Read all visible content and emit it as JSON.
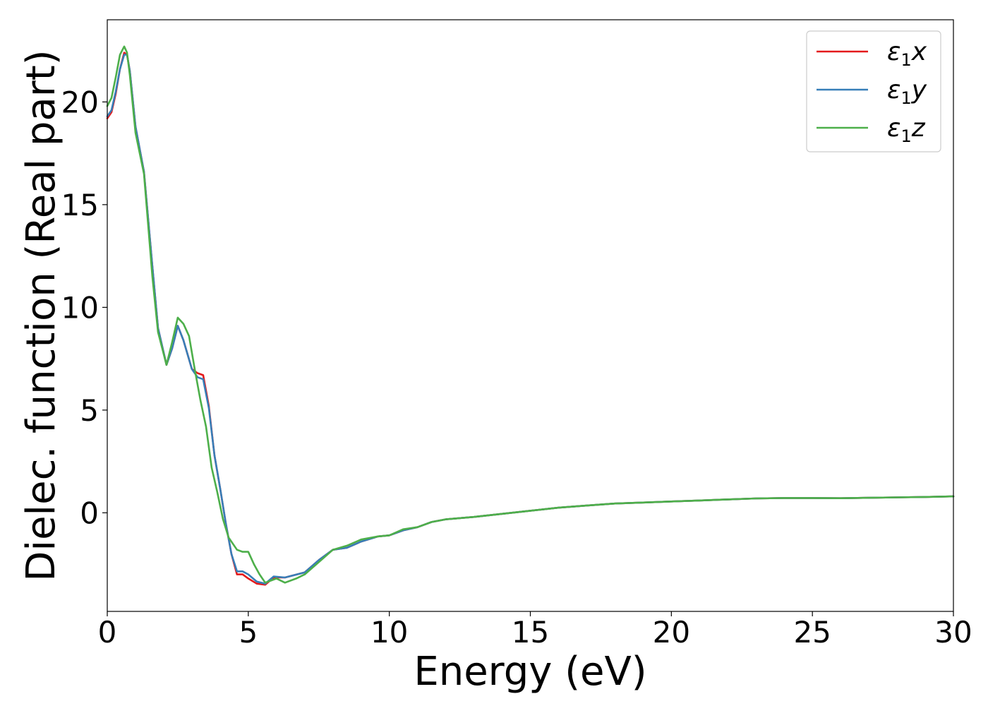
{
  "chart_data": {
    "type": "line",
    "xlabel": "Energy (eV)",
    "ylabel": "Dielec. function (Real part)",
    "xlim": [
      0,
      30
    ],
    "ylim": [
      -4.8,
      24
    ],
    "xticks": [
      0,
      5,
      10,
      15,
      20,
      25,
      30
    ],
    "yticks": [
      0,
      5,
      10,
      15,
      20
    ],
    "grid": false,
    "legend_position": "top-right",
    "series": [
      {
        "name": "ε₁x",
        "legend": {
          "base": "ε",
          "sub": "1",
          "suffix": "x"
        },
        "color": "#e41a1c",
        "points": [
          [
            0,
            19.2
          ],
          [
            0.15,
            19.5
          ],
          [
            0.3,
            20.4
          ],
          [
            0.45,
            21.6
          ],
          [
            0.6,
            22.4
          ],
          [
            0.7,
            22.3
          ],
          [
            0.8,
            21.5
          ],
          [
            1.0,
            18.8
          ],
          [
            1.3,
            16.6
          ],
          [
            1.6,
            12.0
          ],
          [
            1.8,
            9.0
          ],
          [
            2.1,
            7.2
          ],
          [
            2.3,
            8.0
          ],
          [
            2.5,
            9.1
          ],
          [
            2.7,
            8.4
          ],
          [
            3.0,
            7.0
          ],
          [
            3.2,
            6.8
          ],
          [
            3.4,
            6.7
          ],
          [
            3.6,
            5.2
          ],
          [
            3.8,
            2.8
          ],
          [
            4.0,
            1.2
          ],
          [
            4.2,
            -0.5
          ],
          [
            4.4,
            -2.0
          ],
          [
            4.6,
            -3.0
          ],
          [
            4.8,
            -3.0
          ],
          [
            5.0,
            -3.2
          ],
          [
            5.3,
            -3.45
          ],
          [
            5.6,
            -3.5
          ],
          [
            5.9,
            -3.15
          ],
          [
            6.3,
            -3.15
          ],
          [
            7.0,
            -2.9
          ],
          [
            7.5,
            -2.3
          ],
          [
            8.0,
            -1.8
          ],
          [
            8.5,
            -1.7
          ],
          [
            9.0,
            -1.4
          ],
          [
            9.6,
            -1.15
          ],
          [
            10.0,
            -1.1
          ],
          [
            10.5,
            -0.85
          ],
          [
            11.0,
            -0.7
          ],
          [
            11.5,
            -0.45
          ],
          [
            12.0,
            -0.32
          ],
          [
            13.0,
            -0.2
          ],
          [
            14.0,
            -0.05
          ],
          [
            15.0,
            0.1
          ],
          [
            16.0,
            0.25
          ],
          [
            17.0,
            0.35
          ],
          [
            18.0,
            0.45
          ],
          [
            19.0,
            0.5
          ],
          [
            20.0,
            0.55
          ],
          [
            21.0,
            0.6
          ],
          [
            22.0,
            0.65
          ],
          [
            23.0,
            0.7
          ],
          [
            24.0,
            0.72
          ],
          [
            25.0,
            0.72
          ],
          [
            26.0,
            0.71
          ],
          [
            27.0,
            0.73
          ],
          [
            28.0,
            0.75
          ],
          [
            29.0,
            0.77
          ],
          [
            30.0,
            0.8
          ]
        ]
      },
      {
        "name": "ε₁y",
        "legend": {
          "base": "ε",
          "sub": "1",
          "suffix": "y"
        },
        "color": "#377eb8",
        "points": [
          [
            0,
            19.3
          ],
          [
            0.15,
            19.6
          ],
          [
            0.3,
            20.5
          ],
          [
            0.45,
            21.6
          ],
          [
            0.6,
            22.3
          ],
          [
            0.7,
            22.3
          ],
          [
            0.8,
            21.5
          ],
          [
            1.0,
            18.8
          ],
          [
            1.3,
            16.6
          ],
          [
            1.6,
            12.0
          ],
          [
            1.8,
            9.0
          ],
          [
            2.1,
            7.2
          ],
          [
            2.3,
            8.0
          ],
          [
            2.5,
            9.1
          ],
          [
            2.7,
            8.4
          ],
          [
            3.0,
            7.0
          ],
          [
            3.2,
            6.6
          ],
          [
            3.4,
            6.5
          ],
          [
            3.6,
            5.1
          ],
          [
            3.8,
            2.8
          ],
          [
            4.0,
            1.2
          ],
          [
            4.2,
            -0.5
          ],
          [
            4.4,
            -2.0
          ],
          [
            4.6,
            -2.85
          ],
          [
            4.8,
            -2.85
          ],
          [
            5.0,
            -3.0
          ],
          [
            5.3,
            -3.35
          ],
          [
            5.6,
            -3.45
          ],
          [
            5.9,
            -3.1
          ],
          [
            6.3,
            -3.15
          ],
          [
            7.0,
            -2.9
          ],
          [
            7.5,
            -2.3
          ],
          [
            8.0,
            -1.8
          ],
          [
            8.5,
            -1.7
          ],
          [
            9.0,
            -1.4
          ],
          [
            9.6,
            -1.15
          ],
          [
            10.0,
            -1.1
          ],
          [
            10.5,
            -0.85
          ],
          [
            11.0,
            -0.7
          ],
          [
            11.5,
            -0.45
          ],
          [
            12.0,
            -0.32
          ],
          [
            13.0,
            -0.2
          ],
          [
            14.0,
            -0.05
          ],
          [
            15.0,
            0.1
          ],
          [
            16.0,
            0.25
          ],
          [
            17.0,
            0.35
          ],
          [
            18.0,
            0.45
          ],
          [
            19.0,
            0.5
          ],
          [
            20.0,
            0.55
          ],
          [
            21.0,
            0.6
          ],
          [
            22.0,
            0.65
          ],
          [
            23.0,
            0.7
          ],
          [
            24.0,
            0.72
          ],
          [
            25.0,
            0.72
          ],
          [
            26.0,
            0.71
          ],
          [
            27.0,
            0.73
          ],
          [
            28.0,
            0.75
          ],
          [
            29.0,
            0.77
          ],
          [
            30.0,
            0.8
          ]
        ]
      },
      {
        "name": "ε₁z",
        "legend": {
          "base": "ε",
          "sub": "1",
          "suffix": "z"
        },
        "color": "#4daf4a",
        "points": [
          [
            0,
            19.8
          ],
          [
            0.15,
            20.2
          ],
          [
            0.3,
            21.2
          ],
          [
            0.45,
            22.3
          ],
          [
            0.6,
            22.7
          ],
          [
            0.7,
            22.4
          ],
          [
            0.8,
            21.3
          ],
          [
            1.0,
            18.5
          ],
          [
            1.3,
            16.5
          ],
          [
            1.6,
            11.5
          ],
          [
            1.8,
            8.8
          ],
          [
            2.1,
            7.2
          ],
          [
            2.3,
            8.3
          ],
          [
            2.5,
            9.5
          ],
          [
            2.7,
            9.2
          ],
          [
            2.9,
            8.6
          ],
          [
            3.1,
            7.0
          ],
          [
            3.3,
            5.5
          ],
          [
            3.5,
            4.2
          ],
          [
            3.7,
            2.2
          ],
          [
            3.9,
            1.0
          ],
          [
            4.1,
            -0.3
          ],
          [
            4.3,
            -1.2
          ],
          [
            4.6,
            -1.8
          ],
          [
            4.8,
            -1.9
          ],
          [
            5.0,
            -1.9
          ],
          [
            5.2,
            -2.5
          ],
          [
            5.4,
            -3.0
          ],
          [
            5.6,
            -3.4
          ],
          [
            5.8,
            -3.3
          ],
          [
            6.0,
            -3.2
          ],
          [
            6.3,
            -3.4
          ],
          [
            6.7,
            -3.2
          ],
          [
            7.0,
            -3.0
          ],
          [
            7.5,
            -2.4
          ],
          [
            8.0,
            -1.8
          ],
          [
            8.5,
            -1.6
          ],
          [
            9.0,
            -1.3
          ],
          [
            9.6,
            -1.15
          ],
          [
            10.0,
            -1.1
          ],
          [
            10.5,
            -0.8
          ],
          [
            11.0,
            -0.7
          ],
          [
            11.5,
            -0.45
          ],
          [
            12.0,
            -0.32
          ],
          [
            13.0,
            -0.2
          ],
          [
            14.0,
            -0.05
          ],
          [
            15.0,
            0.1
          ],
          [
            16.0,
            0.25
          ],
          [
            17.0,
            0.35
          ],
          [
            18.0,
            0.45
          ],
          [
            19.0,
            0.5
          ],
          [
            20.0,
            0.55
          ],
          [
            21.0,
            0.6
          ],
          [
            22.0,
            0.65
          ],
          [
            23.0,
            0.7
          ],
          [
            24.0,
            0.72
          ],
          [
            25.0,
            0.72
          ],
          [
            26.0,
            0.71
          ],
          [
            27.0,
            0.73
          ],
          [
            28.0,
            0.75
          ],
          [
            29.0,
            0.77
          ],
          [
            30.0,
            0.8
          ]
        ]
      }
    ]
  }
}
